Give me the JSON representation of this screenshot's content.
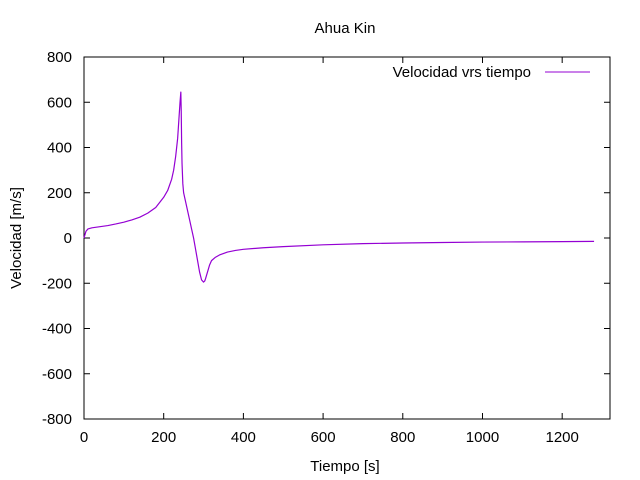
{
  "chart_data": {
    "type": "line",
    "title": "Ahua Kin",
    "xlabel": "Tiempo [s]",
    "ylabel": "Velocidad [m/s]",
    "xlim": [
      0,
      1320
    ],
    "ylim": [
      -800,
      800
    ],
    "xticks": [
      0,
      200,
      400,
      600,
      800,
      1000,
      1200
    ],
    "yticks": [
      -800,
      -600,
      -400,
      -200,
      0,
      200,
      400,
      600,
      800
    ],
    "grid": false,
    "legend": "top-right",
    "series": [
      {
        "name": "Velocidad vrs tiempo",
        "color": "#9400d3",
        "x": [
          0,
          5,
          10,
          20,
          40,
          60,
          80,
          100,
          120,
          140,
          160,
          180,
          200,
          210,
          220,
          225,
          230,
          235,
          238,
          241,
          243,
          244,
          245,
          246,
          248,
          250,
          255,
          260,
          265,
          270,
          275,
          280,
          285,
          290,
          295,
          300,
          303,
          305,
          310,
          315,
          320,
          330,
          340,
          360,
          380,
          400,
          450,
          500,
          600,
          700,
          800,
          900,
          1000,
          1100,
          1200,
          1280
        ],
        "y": [
          0,
          30,
          40,
          45,
          50,
          55,
          62,
          70,
          80,
          92,
          110,
          135,
          180,
          210,
          260,
          300,
          360,
          440,
          520,
          600,
          645,
          560,
          420,
          330,
          240,
          200,
          160,
          120,
          80,
          40,
          0,
          -50,
          -100,
          -150,
          -185,
          -195,
          -190,
          -180,
          -150,
          -120,
          -100,
          -85,
          -75,
          -62,
          -55,
          -50,
          -43,
          -38,
          -30,
          -25,
          -22,
          -20,
          -18,
          -17,
          -16,
          -15
        ]
      }
    ]
  }
}
